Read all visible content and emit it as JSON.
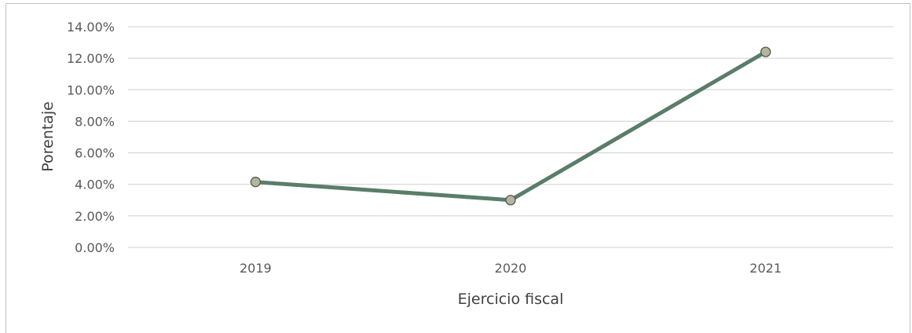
{
  "chart_data": {
    "type": "line",
    "title": "",
    "xlabel": "Ejercicio fiscal",
    "ylabel": "Porentaje",
    "categories": [
      "2019",
      "2020",
      "2021"
    ],
    "series": [
      {
        "values": [
          4.15,
          3.0,
          12.4
        ],
        "color": "#5a7d6a",
        "marker_color": "#b5b59d"
      }
    ],
    "ylim": [
      0,
      14
    ],
    "yticks": [
      0,
      2,
      4,
      6,
      8,
      10,
      12,
      14
    ],
    "ytick_labels": [
      "0.00%",
      "2.00%",
      "4.00%",
      "6.00%",
      "8.00%",
      "10.00%",
      "12.00%",
      "14.00%"
    ],
    "grid": true,
    "gridline_color": "#d9d9d9",
    "legend": "none"
  }
}
